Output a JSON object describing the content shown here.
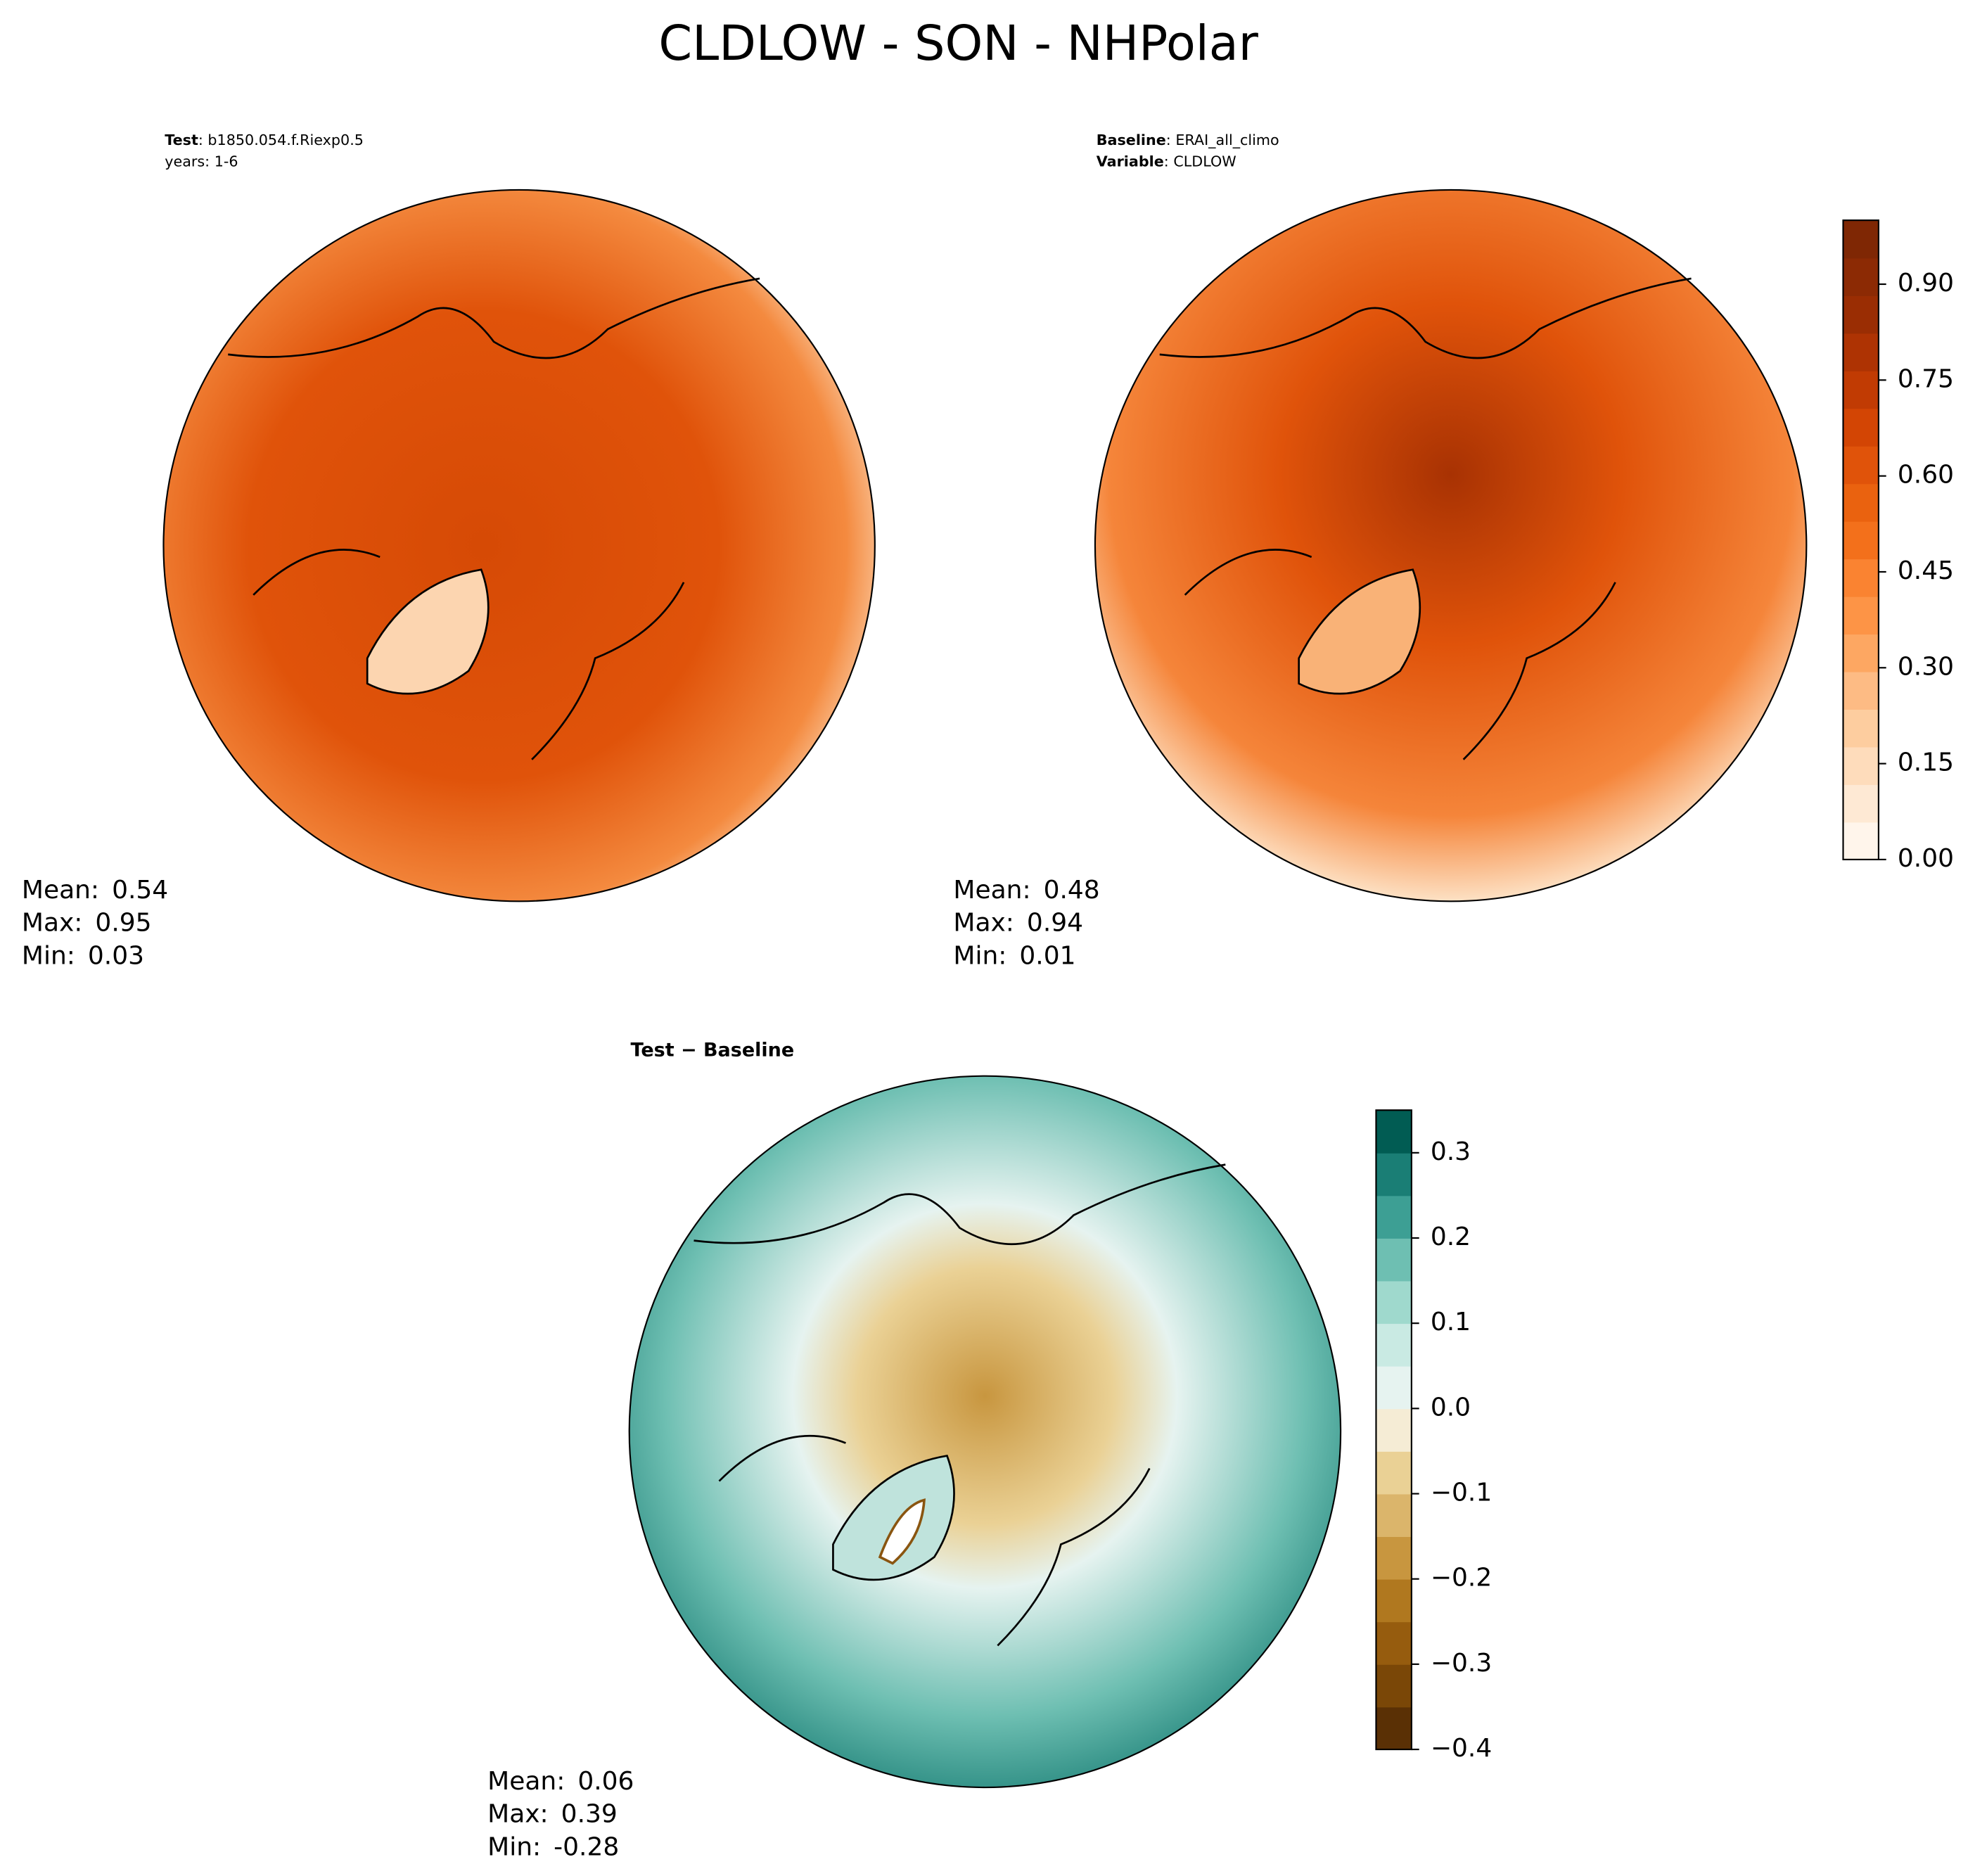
{
  "title": "CLDLOW - SON - NHPolar",
  "chart_data": [
    {
      "type": "map",
      "annotations": [
        [
          {
            "text": "Test",
            "bold": true
          },
          {
            "text": ": b1850.054.f.Riexp0.5"
          }
        ],
        [
          {
            "text": "years: 1-6"
          }
        ]
      ],
      "stats": [
        {
          "label": "Mean:",
          "value": 0.54
        },
        {
          "label": "Max:",
          "value": 0.95
        },
        {
          "label": "Min:",
          "value": 0.03
        }
      ]
    },
    {
      "type": "map",
      "annotations": [
        [
          {
            "text": "Baseline",
            "bold": true
          },
          {
            "text": ": ERAI_all_climo"
          }
        ],
        [
          {
            "text": "Variable",
            "bold": true
          },
          {
            "text": ": CLDLOW"
          }
        ]
      ],
      "stats": [
        {
          "label": "Mean:",
          "value": 0.48
        },
        {
          "label": "Max:",
          "value": 0.94
        },
        {
          "label": "Min:",
          "value": 0.01
        }
      ]
    },
    {
      "type": "map",
      "annotations": [
        [
          {
            "text": "Test − Baseline",
            "bold": true
          }
        ]
      ],
      "stats": [
        {
          "label": "Mean:",
          "value": 0.06
        },
        {
          "label": "Max:",
          "value": 0.39
        },
        {
          "label": "Min:",
          "value": -0.28
        }
      ]
    },
    {
      "type": "colorbar",
      "ylim": [
        0,
        1
      ],
      "yticks": [
        {
          "value": 0,
          "label": "0.00"
        },
        0.15,
        {
          "value": 0.3,
          "label": "0.30"
        },
        {
          "value": 0.45,
          "label": "0.45"
        },
        {
          "value": 0.6,
          "label": "0.60"
        },
        {
          "value": 0.75,
          "label": "0.75"
        },
        {
          "value": 0.9,
          "label": "0.90"
        }
      ],
      "colors": [
        "#fff5eb",
        "#fee9d4",
        "#fedcbb",
        "#fdcd9f",
        "#fdbb84",
        "#fda762",
        "#fd9446",
        "#fa8331",
        "#f3701b",
        "#ea620f",
        "#e0530a",
        "#d34504",
        "#c13b03",
        "#ae3303",
        "#9a2d03",
        "#8c2a04",
        "#7f2704"
      ]
    },
    {
      "type": "colorbar",
      "ylim": [
        -0.4,
        0.35
      ],
      "yticks": [
        {
          "value": -0.4,
          "label": "−0.4"
        },
        {
          "value": -0.3,
          "label": "−0.3"
        },
        {
          "value": -0.2,
          "label": "−0.2"
        },
        {
          "value": -0.1,
          "label": "−0.1"
        },
        {
          "value": 0,
          "label": "0.0"
        },
        0.1,
        0.2,
        0.3
      ],
      "colors": [
        "#5a3005",
        "#7a4707",
        "#965c0e",
        "#b0781f",
        "#c8963f",
        "#dbb56b",
        "#ead195",
        "#f5ecd5",
        "#e6f3f0",
        "#c9eae3",
        "#9fd9cd",
        "#6ebfb2",
        "#3d9f94",
        "#1a7e75",
        "#015c53"
      ]
    }
  ]
}
